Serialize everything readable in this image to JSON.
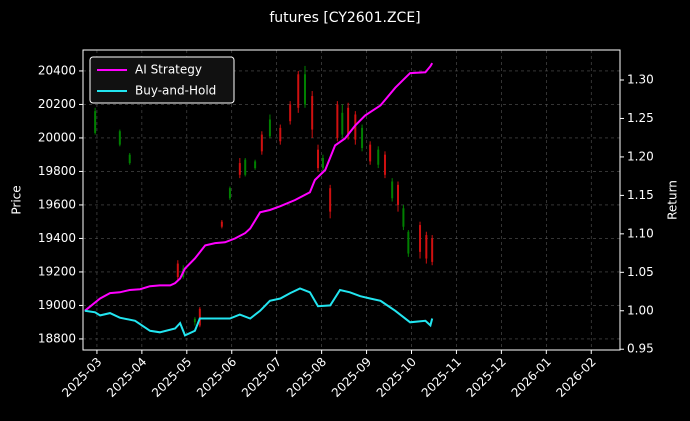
{
  "chart_data": {
    "type": "candlestick",
    "title": "futures [CY2601.ZCE]",
    "y_label": "Price",
    "y2_label": "Return",
    "xlim": [
      -0.31,
      11.64
    ],
    "xticks": [
      {
        "value": 0,
        "label": "2025-03"
      },
      {
        "value": 1,
        "label": "2025-04"
      },
      {
        "value": 2,
        "label": "2025-05"
      },
      {
        "value": 3,
        "label": "2025-06"
      },
      {
        "value": 4,
        "label": "2025-07"
      },
      {
        "value": 5,
        "label": "2025-08"
      },
      {
        "value": 6,
        "label": "2025-09"
      },
      {
        "value": 7,
        "label": "2025-10"
      },
      {
        "value": 8,
        "label": "2025-11"
      },
      {
        "value": 9,
        "label": "2025-12"
      },
      {
        "value": 10,
        "label": "2026-01"
      },
      {
        "value": 11,
        "label": "2026-02"
      }
    ],
    "ylim": [
      18734,
      20525
    ],
    "yticks": [
      18800,
      19000,
      19200,
      19400,
      19600,
      19800,
      20000,
      20200,
      20400
    ],
    "y2lim": [
      0.949,
      1.339
    ],
    "y2ticks": [
      0.95,
      {
        "value": 1.0,
        "label": "1.00"
      },
      1.05,
      {
        "value": 1.1,
        "label": "1.10"
      },
      1.15,
      {
        "value": 1.2,
        "label": "1.20"
      },
      1.25,
      {
        "value": 1.3,
        "label": "1.30"
      }
    ],
    "grid": true,
    "legend": "upper left",
    "up_color": "#008000",
    "down_color": "#d01010",
    "candles": {
      "x": [
        -0.04,
        0.51,
        0.73,
        1.8,
        1.92,
        2.18,
        2.29,
        2.78,
        2.96,
        3.18,
        3.3,
        3.52,
        3.67,
        3.85,
        4.08,
        4.3,
        4.48,
        4.63,
        4.79,
        4.92,
        5.03,
        5.19,
        5.35,
        5.46,
        5.59,
        5.75,
        5.9,
        6.08,
        6.26,
        6.41,
        6.57,
        6.7,
        6.82,
        6.93,
        7.19,
        7.33,
        7.46
      ],
      "open": [
        20030,
        19960,
        19850,
        19250,
        19170,
        18900,
        18980,
        19500,
        19640,
        19850,
        19780,
        19820,
        20020,
        20010,
        20060,
        20200,
        20380,
        20200,
        20250,
        19930,
        19820,
        19700,
        20200,
        20020,
        20180,
        20140,
        19940,
        19960,
        19840,
        19900,
        19640,
        19720,
        19470,
        19310,
        19480,
        19420,
        19400
      ],
      "high": [
        20180,
        20050,
        19910,
        19270,
        19240,
        18930,
        18990,
        19510,
        19710,
        19880,
        19880,
        19870,
        20040,
        20140,
        20080,
        20220,
        20400,
        20430,
        20280,
        19960,
        19900,
        19720,
        20220,
        20200,
        20210,
        20160,
        20080,
        19980,
        19950,
        19920,
        19760,
        19740,
        19600,
        19450,
        19500,
        19440,
        19420
      ],
      "low": [
        20020,
        19950,
        19840,
        19150,
        19160,
        18880,
        18870,
        19460,
        19630,
        19760,
        19770,
        19810,
        19900,
        20000,
        19960,
        20080,
        20150,
        20180,
        20000,
        19800,
        19790,
        19520,
        19980,
        20000,
        19990,
        19960,
        19920,
        19840,
        19820,
        19760,
        19620,
        19560,
        19450,
        19290,
        19280,
        19250,
        19240
      ],
      "close": [
        20160,
        20040,
        19900,
        19170,
        19220,
        18920,
        18880,
        19470,
        19700,
        19780,
        19870,
        19860,
        19920,
        20110,
        19980,
        20100,
        20180,
        20380,
        20050,
        19820,
        19880,
        19560,
        20000,
        20150,
        20010,
        19990,
        20060,
        19860,
        19930,
        19780,
        19740,
        19600,
        19580,
        19440,
        19320,
        19280,
        19260
      ]
    },
    "series": [
      {
        "name": "AI Strategy",
        "color": "#ff00ff",
        "axis": "y2",
        "x": [
          -0.27,
          0.07,
          0.29,
          0.51,
          0.73,
          0.96,
          1.18,
          1.4,
          1.63,
          1.74,
          1.85,
          1.96,
          2.18,
          2.41,
          2.63,
          2.85,
          3.07,
          3.3,
          3.41,
          3.63,
          3.85,
          4.08,
          4.41,
          4.74,
          4.85,
          5.08,
          5.3,
          5.52,
          5.75,
          5.97,
          6.31,
          6.64,
          6.97,
          7.31,
          7.42,
          7.46
        ],
        "values": [
          1.0,
          1.016,
          1.023,
          1.024,
          1.027,
          1.028,
          1.032,
          1.033,
          1.033,
          1.036,
          1.042,
          1.055,
          1.068,
          1.085,
          1.088,
          1.089,
          1.094,
          1.101,
          1.107,
          1.128,
          1.131,
          1.136,
          1.144,
          1.154,
          1.17,
          1.183,
          1.215,
          1.224,
          1.241,
          1.254,
          1.267,
          1.29,
          1.309,
          1.31,
          1.318,
          1.322
        ]
      },
      {
        "name": "Buy-and-Hold",
        "color": "#22e5f0",
        "axis": "y2",
        "x": [
          -0.27,
          -0.04,
          0.07,
          0.29,
          0.51,
          0.85,
          1.18,
          1.4,
          1.74,
          1.85,
          1.96,
          2.18,
          2.29,
          2.63,
          2.96,
          3.18,
          3.41,
          3.63,
          3.85,
          4.08,
          4.3,
          4.52,
          4.74,
          4.92,
          5.19,
          5.41,
          5.63,
          5.86,
          6.08,
          6.31,
          6.64,
          6.97,
          7.31,
          7.42,
          7.46
        ],
        "values": [
          1.0,
          0.998,
          0.994,
          0.997,
          0.991,
          0.987,
          0.974,
          0.972,
          0.977,
          0.984,
          0.968,
          0.974,
          0.99,
          0.99,
          0.99,
          0.995,
          0.99,
          1.0,
          1.013,
          1.016,
          1.023,
          1.029,
          1.024,
          1.006,
          1.007,
          1.027,
          1.024,
          1.019,
          1.016,
          1.013,
          1.0,
          0.985,
          0.987,
          0.981,
          0.99
        ]
      }
    ]
  }
}
